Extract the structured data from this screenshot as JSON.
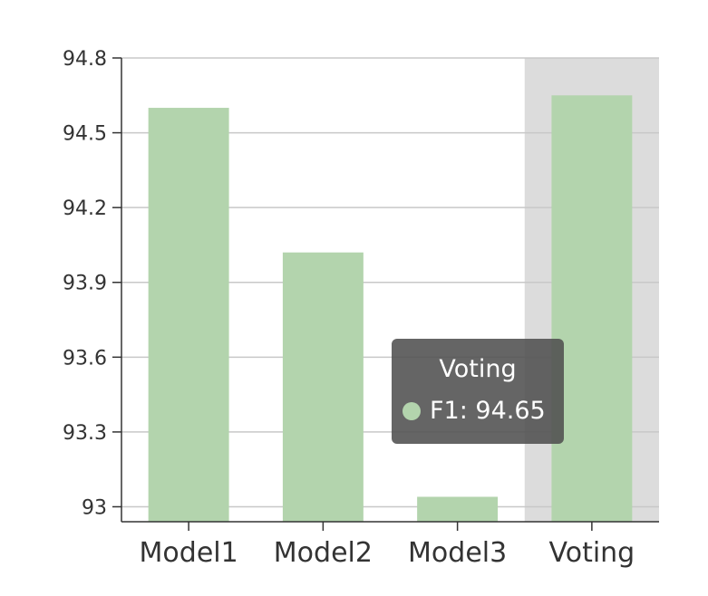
{
  "chart_data": {
    "type": "bar",
    "categories": [
      "Model1",
      "Model2",
      "Model3",
      "Voting"
    ],
    "series": [
      {
        "name": "F1",
        "values": [
          94.6,
          94.02,
          93.04,
          94.65
        ]
      }
    ],
    "title": "",
    "xlabel": "",
    "ylabel": "",
    "ylim": [
      92.94,
      94.8
    ],
    "yticks": [
      "93",
      "93.3",
      "93.6",
      "93.9",
      "94.2",
      "94.5",
      "94.8"
    ],
    "highlighted_category": "Voting",
    "grid": true
  },
  "tooltip": {
    "title": "Voting",
    "label": "F1: 94.65"
  },
  "colors": {
    "bar": "#b3d4ad",
    "highlight_band": "#dcdcdc",
    "grid": "#c8c8c8",
    "axis": "#333333"
  }
}
